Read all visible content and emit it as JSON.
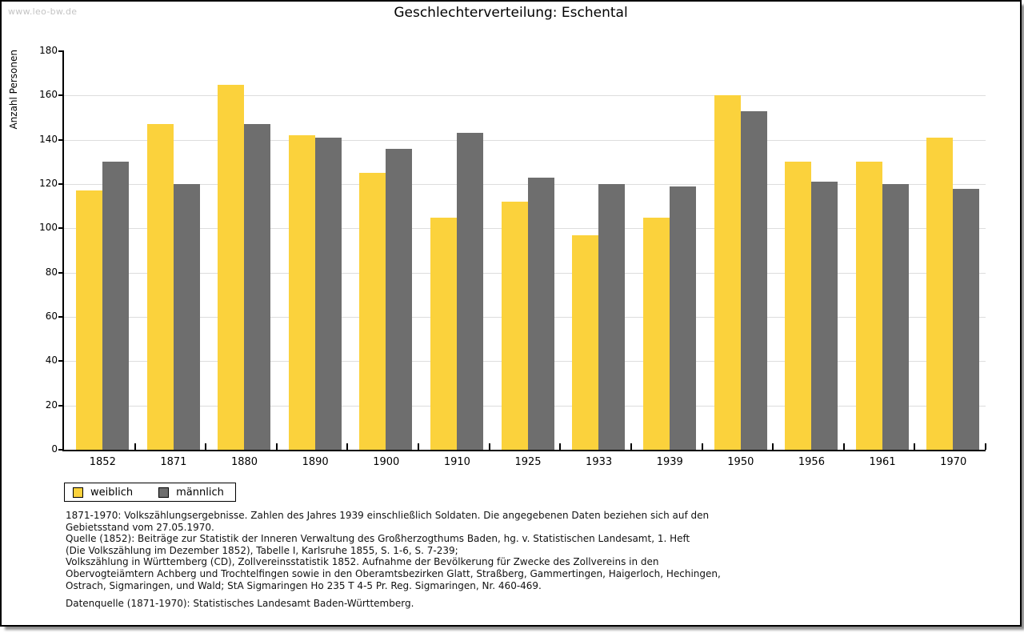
{
  "watermark": "www.leo-bw.de",
  "chart_data": {
    "type": "bar",
    "title": "Geschlechterverteilung: Eschental",
    "xlabel": "",
    "ylabel": "Anzahl Personen",
    "ylim": [
      0,
      180
    ],
    "ytick_step": 20,
    "grid": true,
    "legend_position": "bottom-left",
    "categories": [
      "1852",
      "1871",
      "1880",
      "1890",
      "1900",
      "1910",
      "1925",
      "1933",
      "1939",
      "1950",
      "1956",
      "1961",
      "1970"
    ],
    "series": [
      {
        "name": "weiblich",
        "color": "#FBD23C",
        "values": [
          117,
          147,
          165,
          142,
          125,
          105,
          112,
          97,
          105,
          160,
          130,
          130,
          141
        ]
      },
      {
        "name": "männlich",
        "color": "#6E6E6E",
        "values": [
          130,
          120,
          147,
          141,
          136,
          143,
          123,
          120,
          119,
          153,
          121,
          120,
          118
        ]
      }
    ]
  },
  "footer": {
    "lines": [
      "1871-1970: Volkszählungsergebnisse. Zahlen des Jahres 1939 einschließlich Soldaten. Die angegebenen Daten beziehen sich auf den",
      "Gebietsstand vom 27.05.1970.",
      "Quelle (1852): Beiträge zur Statistik der Inneren Verwaltung des Großherzogthums Baden, hg. v. Statistischen Landesamt, 1. Heft",
      "(Die Volkszählung im Dezember 1852), Tabelle I, Karlsruhe 1855, S. 1-6, S. 7-239;",
      "Volkszählung in Württemberg (CD), Zollvereinsstatistik 1852. Aufnahme der Bevölkerung für Zwecke des Zollvereins in den",
      "Obervogteiämtern Achberg und Trochtelfingen sowie in den Oberamtsbezirken Glatt, Straßberg, Gammertingen, Haigerloch, Hechingen,",
      "Ostrach, Sigmaringen, und Wald; StA Sigmaringen Ho 235 T 4-5 Pr. Reg. Sigmaringen, Nr. 460-469."
    ],
    "datenquelle": "Datenquelle (1871-1970): Statistisches Landesamt Baden-Württemberg."
  },
  "colors": {
    "grid": "#dddddd",
    "axis": "#000000",
    "watermark": "#c4c4c4"
  }
}
